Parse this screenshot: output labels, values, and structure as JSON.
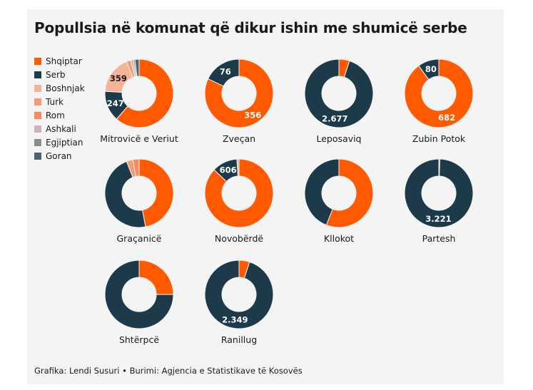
{
  "title": "Popullsia në komunat që dikur ishin me shumicë serbe",
  "source": "Grafika: Lendi Susuri • Burimi: Agjencia e Statistikave të Kosovës",
  "colors": {
    "Shqiptar": "#ff5a00",
    "Serb": "#1d3a4a",
    "Boshnjak": "#f7b39a",
    "Turk": "#f59a72",
    "Rom": "#f98a5e",
    "Ashkali": "#c9b3bc",
    "Egjiptian": "#8b8b8b",
    "Goran": "#4d6570"
  },
  "legend": [
    "Shqiptar",
    "Serb",
    "Boshnjak",
    "Turk",
    "Rom",
    "Ashkali",
    "Egjiptian",
    "Goran"
  ],
  "chart_data": [
    {
      "type": "pie",
      "name": "Mitrovicë e Veriut",
      "slices": [
        {
          "cat": "Shqiptar",
          "value": 0.615
        },
        {
          "cat": "Serb",
          "value": 0.145,
          "label": "247"
        },
        {
          "cat": "Boshnjak",
          "value": 0.18,
          "label": "359"
        },
        {
          "cat": "Turk",
          "value": 0.02
        },
        {
          "cat": "Ashkali",
          "value": 0.012
        },
        {
          "cat": "Egjiptian",
          "value": 0.008
        },
        {
          "cat": "Goran",
          "value": 0.02
        }
      ]
    },
    {
      "type": "pie",
      "name": "Zveçan",
      "slices": [
        {
          "cat": "Shqiptar",
          "value": 0.82,
          "label": "356"
        },
        {
          "cat": "Serb",
          "value": 0.18,
          "label": "76"
        }
      ]
    },
    {
      "type": "pie",
      "name": "Leposaviq",
      "slices": [
        {
          "cat": "Shqiptar",
          "value": 0.05
        },
        {
          "cat": "Serb",
          "value": 0.95,
          "label": "2.677"
        }
      ]
    },
    {
      "type": "pie",
      "name": "Zubin Potok",
      "slices": [
        {
          "cat": "Shqiptar",
          "value": 0.9,
          "label": "682"
        },
        {
          "cat": "Serb",
          "value": 0.1,
          "label": "80"
        }
      ]
    },
    {
      "type": "pie",
      "name": "Graçanicë",
      "slices": [
        {
          "cat": "Shqiptar",
          "value": 0.47
        },
        {
          "cat": "Serb",
          "value": 0.47
        },
        {
          "cat": "Turk",
          "value": 0.03
        },
        {
          "cat": "Rom",
          "value": 0.03
        }
      ]
    },
    {
      "type": "pie",
      "name": "Novobërdë",
      "slices": [
        {
          "cat": "Shqiptar",
          "value": 0.87
        },
        {
          "cat": "Serb",
          "value": 0.12,
          "label": "606"
        },
        {
          "cat": "Ashkali",
          "value": 0.01
        }
      ]
    },
    {
      "type": "pie",
      "name": "Kllokot",
      "slices": [
        {
          "cat": "Shqiptar",
          "value": 0.56
        },
        {
          "cat": "Serb",
          "value": 0.44
        }
      ]
    },
    {
      "type": "pie",
      "name": "Partesh",
      "slices": [
        {
          "cat": "Shqiptar",
          "value": 0.005
        },
        {
          "cat": "Serb",
          "value": 0.995,
          "label": "3.221"
        }
      ]
    },
    {
      "type": "pie",
      "name": "Shtërpcë",
      "slices": [
        {
          "cat": "Shqiptar",
          "value": 0.25
        },
        {
          "cat": "Serb",
          "value": 0.75
        }
      ]
    },
    {
      "type": "pie",
      "name": "Ranillug",
      "slices": [
        {
          "cat": "Shqiptar",
          "value": 0.05
        },
        {
          "cat": "Serb",
          "value": 0.95,
          "label": "2.349"
        }
      ]
    }
  ]
}
